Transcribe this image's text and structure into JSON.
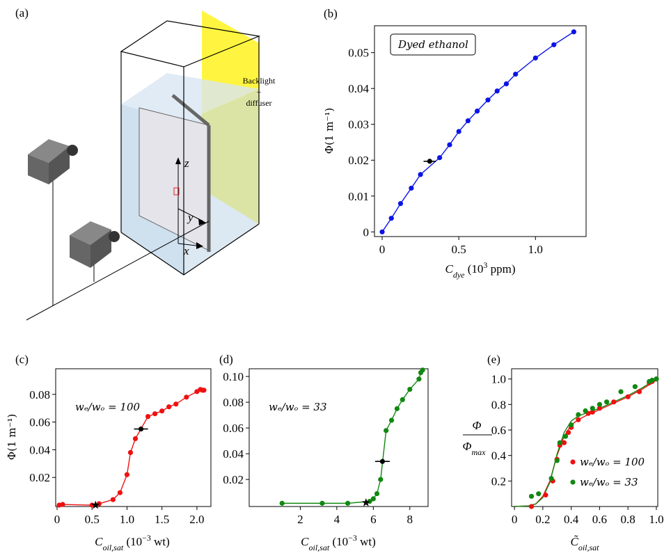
{
  "diagram": {
    "label": "(a)",
    "backlight": [
      "Backlight",
      "+",
      "diffuser"
    ],
    "axes": [
      "z",
      "y",
      "x"
    ]
  },
  "chart_data": [
    {
      "type": "line",
      "panel_label": "(b)",
      "annotation": "Dyed ethanol",
      "xlabel": [
        {
          "text": "C"
        },
        {
          "sub": "dye"
        },
        {
          "text": " (10"
        },
        {
          "sup": "3"
        },
        {
          "text": " ppm)"
        }
      ],
      "ylabel": "Φ(1 m⁻¹)",
      "x": [
        0,
        0.06,
        0.12,
        0.19,
        0.25,
        0.375,
        0.44,
        0.5,
        0.56,
        0.62,
        0.69,
        0.75,
        0.81,
        0.87,
        1.0,
        1.12,
        1.25
      ],
      "values": [
        0,
        0.0038,
        0.0079,
        0.0122,
        0.016,
        0.0207,
        0.0243,
        0.028,
        0.031,
        0.0337,
        0.0368,
        0.0393,
        0.0413,
        0.044,
        0.0485,
        0.0522,
        0.0558
      ],
      "color": "#0a14e6",
      "highlight": {
        "x": 0.31,
        "value": 0.0197,
        "xerr": 0.04,
        "color": "#000000"
      },
      "xlim": [
        -0.05,
        1.33
      ],
      "ylim": [
        -0.0013,
        0.0575
      ],
      "xticks": [
        0,
        0.5,
        {
          "value": 1,
          "label": "1.0"
        }
      ],
      "yticks": [
        0,
        0.01,
        0.02,
        0.03,
        0.04,
        0.05
      ]
    },
    {
      "type": "line",
      "panel_label": "(c)",
      "annotation": "wₑ/wₒ = 100",
      "xlabel": [
        {
          "text": "C"
        },
        {
          "sub": "oil,sat"
        },
        {
          "text": " (10"
        },
        {
          "sup": "−3"
        },
        {
          "text": " wt)"
        }
      ],
      "ylabel": "Φ(1 m⁻¹)",
      "x": [
        0.03,
        0.08,
        0.5,
        0.6,
        0.8,
        0.9,
        1.0,
        1.05,
        1.12,
        1.3,
        1.4,
        1.5,
        1.6,
        1.7,
        1.85,
        2.0,
        2.05,
        2.08,
        2.1
      ],
      "values": [
        0,
        0.0005,
        0,
        0.001,
        0.004,
        0.009,
        0.022,
        0.038,
        0.048,
        0.064,
        0.066,
        0.068,
        0.071,
        0.073,
        0.078,
        0.082,
        0.0835,
        0.083,
        0.083
      ],
      "color": "#ee1111",
      "highlight": {
        "x": 1.2,
        "value": 0.055,
        "xerr": 0.1,
        "color": "#000000"
      },
      "star": {
        "x": 0.55,
        "value": 0,
        "color": "#000000"
      },
      "xlim": [
        -0.02,
        2.2
      ],
      "ylim": [
        -0.001,
        0.0985
      ],
      "xticks": [
        0,
        0.5,
        {
          "value": 1,
          "label": "1.0"
        },
        1.5,
        {
          "value": 2,
          "label": "2.0"
        }
      ],
      "yticks": [
        0.02,
        0.04,
        0.06,
        0.08
      ]
    },
    {
      "type": "line",
      "panel_label": "(d)",
      "annotation": "wₑ/wₒ = 33",
      "xlabel": [
        {
          "text": "C"
        },
        {
          "sub": "oil,sat"
        },
        {
          "text": " (10"
        },
        {
          "sup": "−3"
        },
        {
          "text": " wt)"
        }
      ],
      "x": [
        1,
        3.2,
        4.6,
        5.8,
        6.0,
        6.2,
        6.4,
        6.7,
        7.0,
        7.3,
        7.6,
        8.0,
        8.5,
        8.6,
        8.7
      ],
      "values": [
        0.0015,
        0.0015,
        0.0015,
        0.003,
        0.005,
        0.009,
        0.02,
        0.058,
        0.066,
        0.075,
        0.082,
        0.09,
        0.098,
        0.103,
        0.105
      ],
      "color": "#118811",
      "highlight": {
        "x": 6.5,
        "value": 0.034,
        "xerr": 0.4,
        "color": "#000000"
      },
      "star": {
        "x": 5.6,
        "value": 0.002,
        "color": "#000000"
      },
      "xlim": [
        -0.8,
        9.0
      ],
      "ylim": [
        -0.001,
        0.106
      ],
      "xticks": [
        2,
        4,
        6,
        8
      ],
      "yticks": [
        0.02,
        0.04,
        0.06,
        0.08,
        {
          "value": 0.1,
          "label": "0.10"
        }
      ]
    },
    {
      "type": "scatter",
      "panel_label": "(e)",
      "xlabel": [
        {
          "text": "C̃"
        },
        {
          "sub": "oil,sat"
        }
      ],
      "ylabel": {
        "numerator": "Φ",
        "denominator": "Φ",
        "sub": "max"
      },
      "series": [
        {
          "name": "wₑ/wₒ = 100",
          "color": "#ee1111",
          "x": [
            0.12,
            0.22,
            0.27,
            0.3,
            0.32,
            0.35,
            0.38,
            0.4,
            0.45,
            0.52,
            0.55,
            0.6,
            0.7,
            0.8,
            0.88,
            0.95,
            0.97,
            1.0
          ],
          "values": [
            0,
            0.09,
            0.2,
            0.37,
            0.48,
            0.5,
            0.58,
            0.62,
            0.68,
            0.73,
            0.74,
            0.77,
            0.82,
            0.86,
            0.9,
            0.97,
            0.98,
            1.0
          ]
        },
        {
          "name": "wₑ/wₒ = 33",
          "color": "#118811",
          "x": [
            0.12,
            0.17,
            0.26,
            0.3,
            0.32,
            0.36,
            0.4,
            0.45,
            0.5,
            0.55,
            0.6,
            0.65,
            0.75,
            0.85,
            0.95,
            0.97,
            1.0
          ],
          "values": [
            0.08,
            0.1,
            0.22,
            0.36,
            0.5,
            0.55,
            0.64,
            0.72,
            0.75,
            0.77,
            0.8,
            0.82,
            0.9,
            0.94,
            0.98,
            0.99,
            1.0
          ]
        }
      ],
      "fits": [
        {
          "color": "#ee1111",
          "x": [
            0,
            0.1,
            0.15,
            0.2,
            0.25,
            0.3,
            0.35,
            0.4,
            0.45,
            0.5,
            0.6,
            0.7,
            0.8,
            0.9,
            1.0
          ],
          "values": [
            0,
            0.005,
            0.02,
            0.08,
            0.2,
            0.4,
            0.55,
            0.64,
            0.68,
            0.71,
            0.76,
            0.81,
            0.86,
            0.92,
            0.99
          ]
        },
        {
          "color": "#118811",
          "x": [
            0,
            0.1,
            0.15,
            0.2,
            0.25,
            0.3,
            0.35,
            0.4,
            0.45,
            0.5,
            0.6,
            0.7,
            0.8,
            0.9,
            1.0
          ],
          "values": [
            0,
            0.005,
            0.02,
            0.07,
            0.19,
            0.41,
            0.58,
            0.67,
            0.71,
            0.73,
            0.77,
            0.82,
            0.87,
            0.93,
            1.0
          ]
        }
      ],
      "xlim": [
        -0.02,
        1.01
      ],
      "ylim": [
        0,
        1.08
      ],
      "xticks": [
        0,
        0.2,
        0.4,
        0.6,
        0.8,
        {
          "value": 1,
          "label": "1.0"
        }
      ],
      "yticks": [
        0.2,
        0.4,
        0.6,
        0.8,
        {
          "value": 1,
          "label": "1.0"
        }
      ],
      "legend": "lower right"
    }
  ]
}
